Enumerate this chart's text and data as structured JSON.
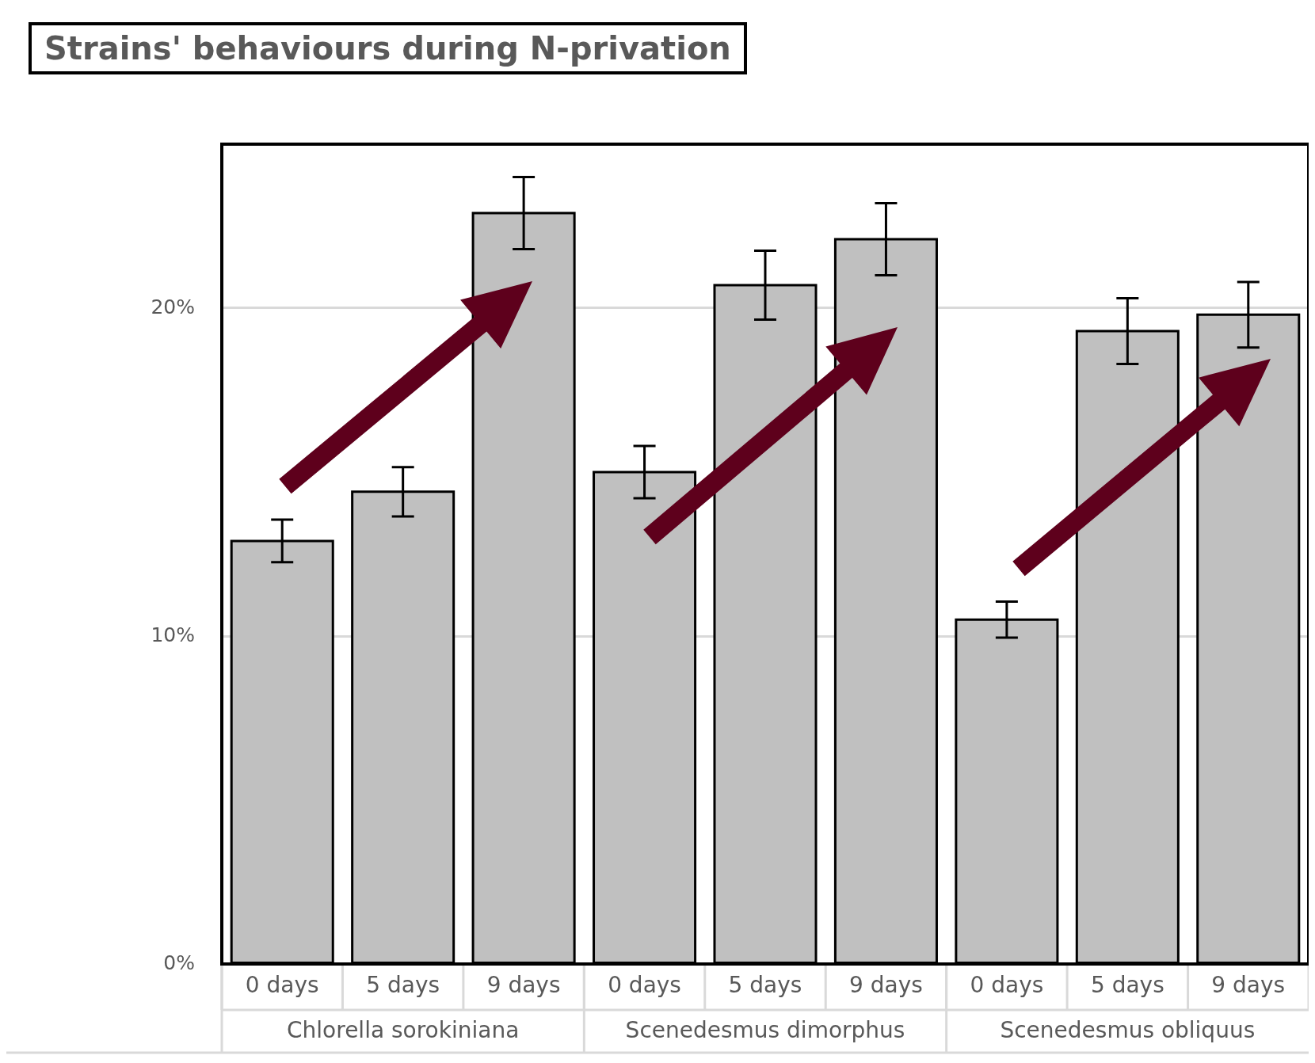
{
  "chart_data": {
    "type": "bar",
    "title": "Strains' behaviours during N-privation",
    "categories": [
      "0 days",
      "5 days",
      "9 days",
      "0 days",
      "5 days",
      "9 days",
      "0 days",
      "5 days",
      "9 days"
    ],
    "values": [
      12.9,
      14.4,
      22.9,
      15.0,
      20.7,
      22.1,
      10.5,
      19.3,
      19.8
    ],
    "errors": [
      0.65,
      0.75,
      1.1,
      0.8,
      1.05,
      1.1,
      0.55,
      1.0,
      1.0
    ],
    "color": "#c0c0c0",
    "ylim": [
      0,
      25
    ],
    "yticks": [
      {
        "value": 0,
        "label": "0%"
      },
      {
        "value": 10,
        "label": "10%"
      },
      {
        "value": 20,
        "label": "20%"
      }
    ],
    "grid": "y",
    "legend": false,
    "annotations": [
      "Chlorella sorokiniana",
      "Scenedesmus dimorphus",
      "Scenedesmus obliquus"
    ]
  }
}
